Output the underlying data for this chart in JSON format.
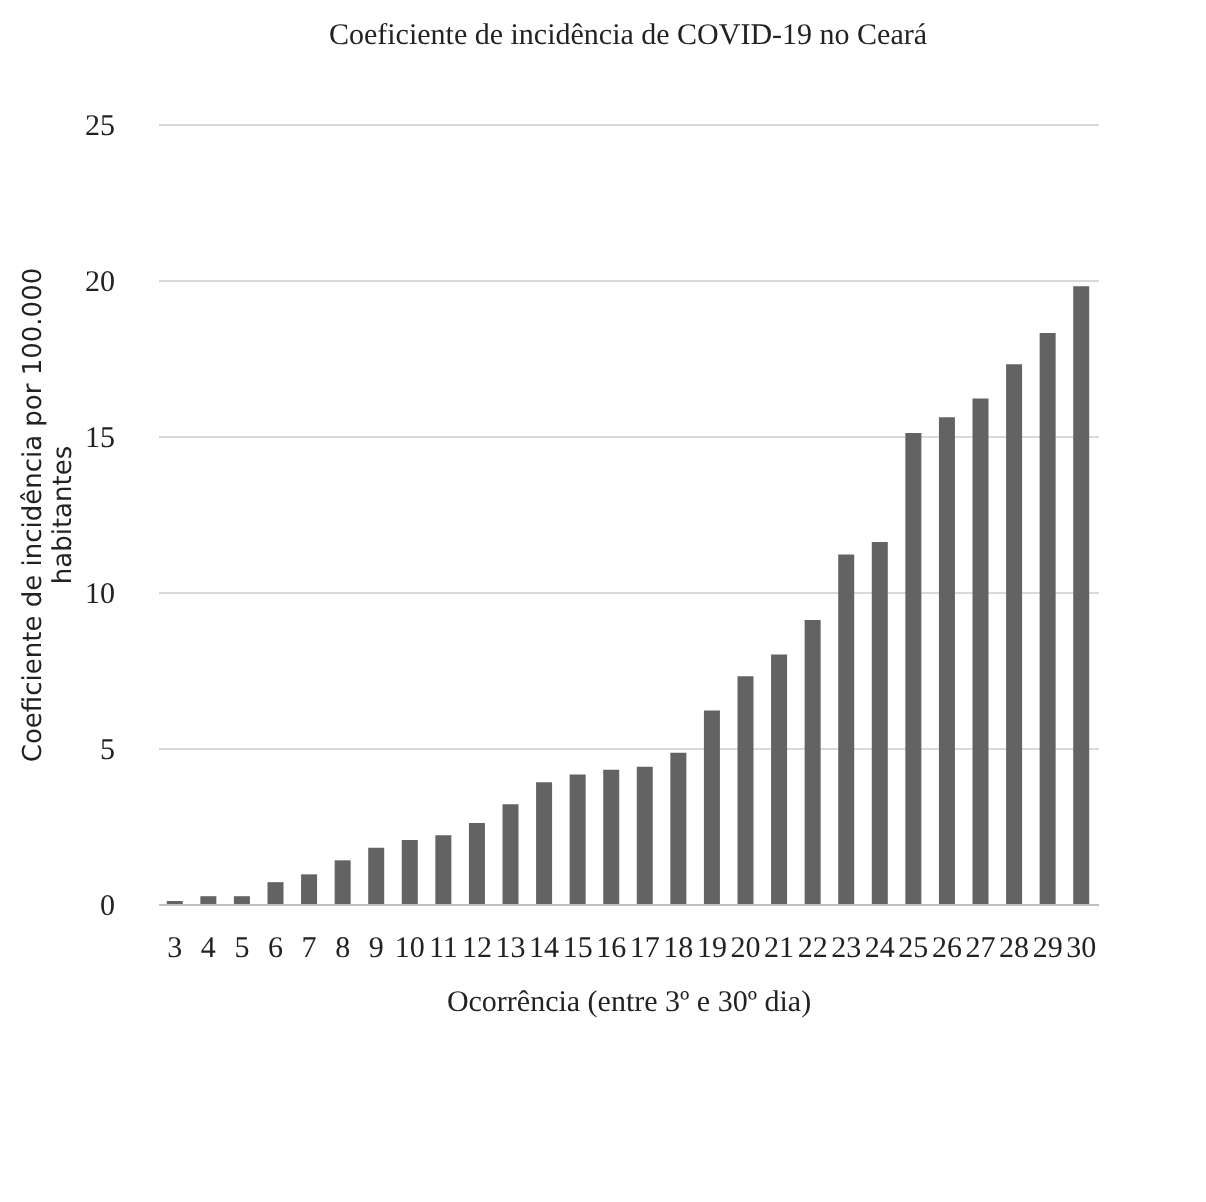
{
  "chart_data": {
    "type": "bar",
    "title": "Coeficiente de incidência de COVID-19 no Ceará",
    "xlabel": "Ocorrência (entre 3º e 30º dia)",
    "ylabel": "Coeficiente de incidência por 100.000 habitantes",
    "categories": [
      "3",
      "4",
      "5",
      "6",
      "7",
      "8",
      "9",
      "10",
      "11",
      "12",
      "13",
      "14",
      "15",
      "16",
      "17",
      "18",
      "19",
      "20",
      "21",
      "22",
      "23",
      "24",
      "25",
      "26",
      "27",
      "28",
      "29",
      "30"
    ],
    "values": [
      0.1,
      0.25,
      0.25,
      0.7,
      0.95,
      1.4,
      1.8,
      2.05,
      2.2,
      2.6,
      3.2,
      3.9,
      4.15,
      4.3,
      4.4,
      4.85,
      6.2,
      7.3,
      8.0,
      9.1,
      11.2,
      11.6,
      15.1,
      15.6,
      16.2,
      17.3,
      18.3,
      19.8
    ],
    "color": "#636363",
    "ylim": [
      0,
      25
    ],
    "yticks": [
      0,
      5,
      10,
      15,
      20,
      25
    ],
    "grid": "y"
  }
}
